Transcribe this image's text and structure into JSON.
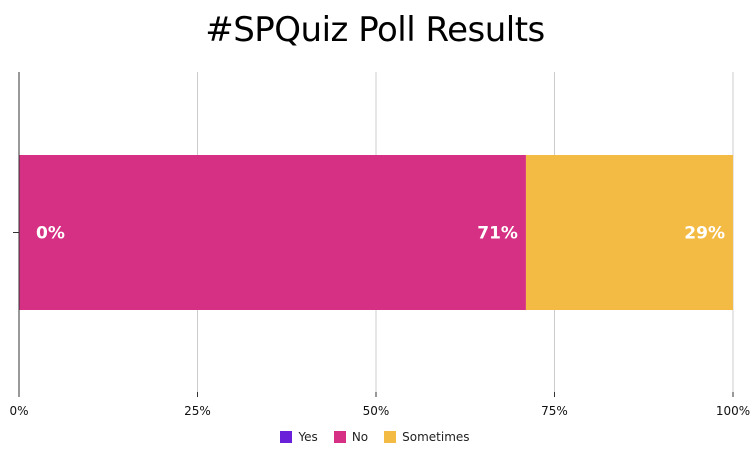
{
  "chart_data": {
    "type": "bar",
    "orientation": "horizontal",
    "stacked": "percent",
    "title": "#SPQuiz Poll Results",
    "xlabel": "",
    "ylabel": "",
    "xlim": [
      0,
      100
    ],
    "x_ticks": [
      "0%",
      "25%",
      "50%",
      "75%",
      "100%"
    ],
    "categories": [
      ""
    ],
    "series": [
      {
        "name": "Yes",
        "values": [
          0
        ],
        "label": "0%",
        "color": "#6a1fd8"
      },
      {
        "name": "No",
        "values": [
          71
        ],
        "label": "71%",
        "color": "#d63084"
      },
      {
        "name": "Sometimes",
        "values": [
          29
        ],
        "label": "29%",
        "color": "#f4bb44"
      }
    ],
    "grid": true,
    "legend": "bottom"
  }
}
